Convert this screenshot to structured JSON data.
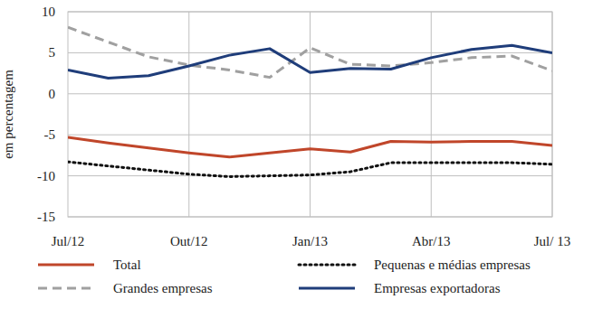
{
  "chart_data": {
    "type": "line",
    "y_label": "em percentagem",
    "categories": [
      "Jul/12",
      null,
      null,
      "Out/12",
      null,
      null,
      "Jan/13",
      null,
      null,
      "Abr/13",
      null,
      null,
      "Jul/ 13"
    ],
    "series": [
      {
        "name": "Total",
        "color": "#c0462a",
        "line_style": "solid",
        "values": [
          -5.3,
          -6.0,
          -6.6,
          -7.2,
          -7.7,
          -7.2,
          -6.7,
          -7.1,
          -5.8,
          -5.9,
          -5.8,
          -5.8,
          -6.3
        ]
      },
      {
        "name": "Pequenas e médias empresas",
        "color": "#111111",
        "line_style": "dotted",
        "values": [
          -8.3,
          -8.8,
          -9.3,
          -9.8,
          -10.1,
          -10.0,
          -9.9,
          -9.5,
          -8.4,
          -8.4,
          -8.4,
          -8.4,
          -8.6
        ]
      },
      {
        "name": "Grandes empresas",
        "color": "#a0a0a0",
        "line_style": "dashed",
        "values": [
          8.1,
          6.3,
          4.5,
          3.5,
          2.9,
          2.0,
          5.6,
          3.6,
          3.4,
          3.8,
          4.4,
          4.6,
          2.8
        ]
      },
      {
        "name": "Empresas exportadoras",
        "color": "#1f3d7a",
        "line_style": "solid",
        "values": [
          2.9,
          1.9,
          2.2,
          3.4,
          4.7,
          5.5,
          2.6,
          3.1,
          3.0,
          4.4,
          5.4,
          5.9,
          5.0
        ]
      }
    ],
    "ylim": [
      -15,
      10
    ],
    "yticks": [
      -15,
      -10,
      -5,
      0,
      5,
      10
    ],
    "grid": true,
    "legend": "bottom"
  }
}
